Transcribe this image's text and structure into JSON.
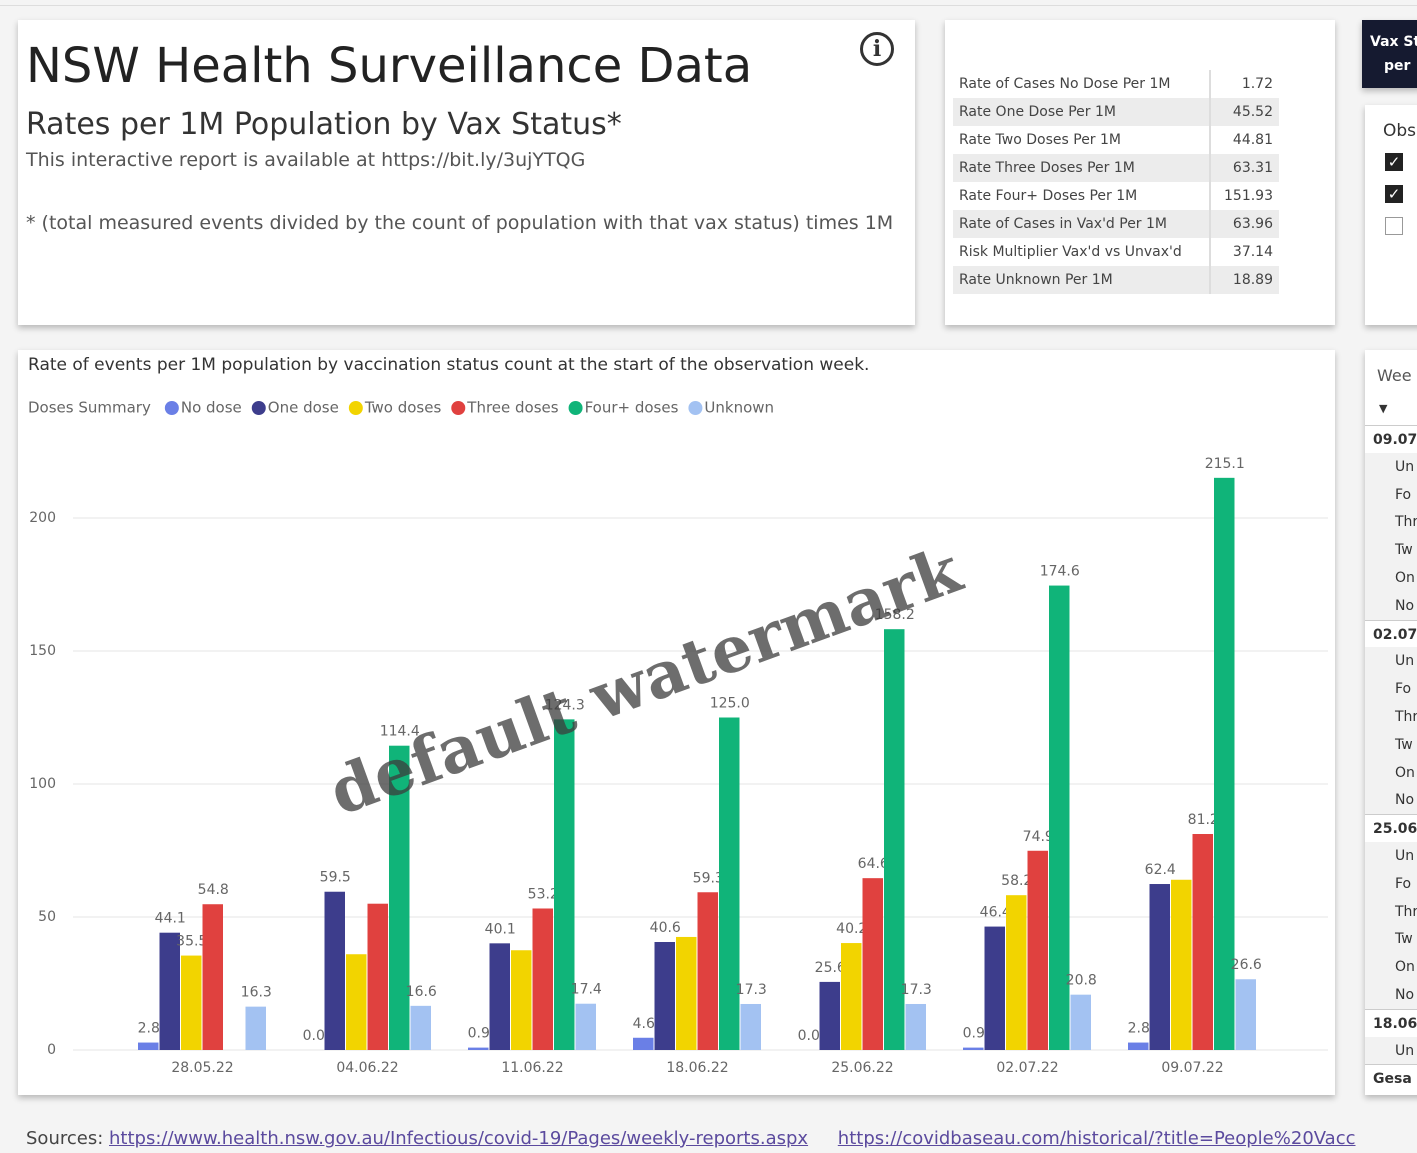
{
  "header": {
    "title": "NSW Health Surveillance Data",
    "subtitle": "Rates per 1M Population by Vax Status*",
    "report_note": "This interactive report is available at https://bit.ly/3ujYTQG",
    "footnote": "* (total measured events divided by the count of population with that vax status) times 1M"
  },
  "metrics": {
    "rows": [
      [
        "Rate of Cases No Dose Per 1M",
        1.72
      ],
      [
        "Rate One Dose Per 1M",
        45.52
      ],
      [
        "Rate Two Doses Per 1M",
        44.81
      ],
      [
        "Rate Three Doses Per 1M",
        63.31
      ],
      [
        "Rate Four+ Doses Per 1M",
        151.93
      ],
      [
        "Rate of Cases in Vax'd Per 1M",
        63.96
      ],
      [
        "Risk Multiplier Vax'd vs Unvax'd",
        37.14
      ],
      [
        "Rate Unknown Per 1M",
        18.89
      ]
    ]
  },
  "side_title": [
    "Vax St",
    "per"
  ],
  "filter": {
    "label": "Obs",
    "checked": [
      true,
      true,
      false
    ]
  },
  "week_list": {
    "header": "Wee",
    "rows": [
      {
        "text": "09.07",
        "group": true
      },
      {
        "text": "Un"
      },
      {
        "text": "Fo"
      },
      {
        "text": "Thr"
      },
      {
        "text": "Tw"
      },
      {
        "text": "On"
      },
      {
        "text": "No"
      },
      {
        "text": "02.07",
        "group": true
      },
      {
        "text": "Un"
      },
      {
        "text": "Fo"
      },
      {
        "text": "Thr"
      },
      {
        "text": "Tw"
      },
      {
        "text": "On"
      },
      {
        "text": "No"
      },
      {
        "text": "25.06",
        "group": true
      },
      {
        "text": "Un"
      },
      {
        "text": "Fo"
      },
      {
        "text": "Thr"
      },
      {
        "text": "Tw"
      },
      {
        "text": "On"
      },
      {
        "text": "No"
      },
      {
        "text": "18.06",
        "group": true
      },
      {
        "text": "Un"
      },
      {
        "text": "Gesa",
        "group": true
      }
    ]
  },
  "sources": {
    "label": "Sources:",
    "links": [
      "https://www.health.nsw.gov.au/Infectious/covid-19/Pages/weekly-reports.aspx",
      "https://covidbaseau.com/historical/?title=People%20Vacc"
    ]
  },
  "watermark": "default watermark",
  "chart_data": {
    "type": "bar",
    "title": "Rate of events per 1M population by vaccination status count at the start of the observation week.",
    "legend_title": "Doses Summary",
    "categories": [
      "28.05.22",
      "04.06.22",
      "11.06.22",
      "18.06.22",
      "25.06.22",
      "02.07.22",
      "09.07.22"
    ],
    "series": [
      {
        "name": "No dose",
        "color": "#6a7fe6",
        "values": [
          2.8,
          0.0,
          0.9,
          4.6,
          0.0,
          0.9,
          2.8
        ],
        "value_labels": [
          "2.8",
          "0.0",
          "0.9",
          "4.6",
          "0.0",
          "0.9",
          "2.8"
        ]
      },
      {
        "name": "One dose",
        "color": "#3d3d8c",
        "values": [
          44.1,
          59.5,
          40.1,
          40.6,
          25.6,
          46.4,
          62.4
        ],
        "value_labels": [
          "44.1",
          "59.5",
          "40.1",
          "40.6",
          "25.6",
          "46.4",
          "62.4"
        ]
      },
      {
        "name": "Two doses",
        "color": "#f2d400",
        "values": [
          35.5,
          36,
          37.5,
          42.5,
          40.2,
          58.2,
          64
        ],
        "value_labels": [
          "35.5",
          null,
          null,
          null,
          "40.2",
          "58.2",
          null
        ]
      },
      {
        "name": "Three doses",
        "color": "#e0413f",
        "values": [
          54.8,
          55,
          53.2,
          59.3,
          64.6,
          74.9,
          81.2
        ],
        "value_labels": [
          "54.8",
          null,
          "53.2",
          "59.3",
          "64.6",
          "74.9",
          "81.2"
        ]
      },
      {
        "name": "Four+ doses",
        "color": "#10b479",
        "values": [
          null,
          114.4,
          124.3,
          125.0,
          158.2,
          174.6,
          215.1
        ],
        "value_labels": [
          null,
          "114.4",
          "124.3",
          "125.0",
          "158.2",
          "174.6",
          "215.1"
        ]
      },
      {
        "name": "Unknown",
        "color": "#a3c2f2",
        "values": [
          16.3,
          16.6,
          17.4,
          17.3,
          17.3,
          20.8,
          26.6
        ],
        "value_labels": [
          "16.3",
          "16.6",
          "17.4",
          "17.3",
          "17.3",
          "20.8",
          "26.6"
        ]
      }
    ],
    "ylim": [
      0,
      225
    ],
    "yticks": [
      0,
      50,
      100,
      150,
      200
    ],
    "grid": true,
    "legend": "top-left"
  }
}
